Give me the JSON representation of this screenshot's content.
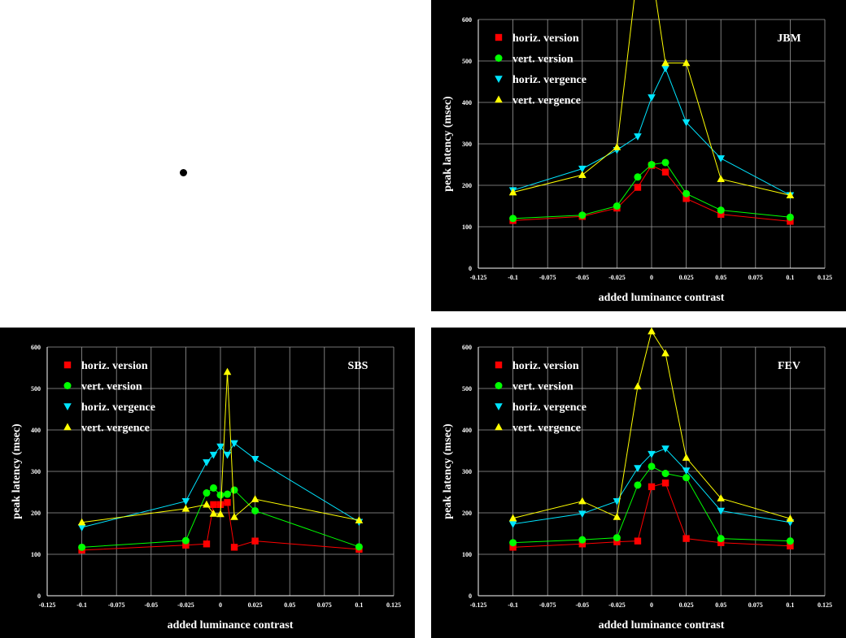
{
  "fixation_dot": {
    "color": "#000000"
  },
  "styles": {
    "horiz_version": {
      "color": "#ff0000",
      "marker": "square"
    },
    "vert_version": {
      "color": "#00ff00",
      "marker": "circle"
    },
    "horiz_vergence": {
      "color": "#00e5ff",
      "marker": "triangle-down"
    },
    "vert_vergence": {
      "color": "#ffff00",
      "marker": "triangle-up"
    }
  },
  "chart_data": [
    {
      "id": "jbm",
      "type": "line",
      "subject": "JBM",
      "xlabel": "added luminance contrast",
      "ylabel": "peak latency (msec)",
      "xlim": [
        -0.125,
        0.125
      ],
      "ylim": [
        0,
        600
      ],
      "xticks": [
        -0.125,
        -0.1,
        -0.075,
        -0.05,
        -0.025,
        0,
        0.025,
        0.05,
        0.075,
        0.1,
        0.125
      ],
      "xtick_labels": [
        "-0.125",
        "-0.1",
        "-0.075",
        "-0.05",
        "-0.025",
        "0",
        "0.025",
        "0.05",
        "0.075",
        "0.1",
        "0.125"
      ],
      "yticks": [
        0,
        100,
        200,
        300,
        400,
        500,
        600
      ],
      "ytick_labels": [
        "0",
        "100",
        "200",
        "300",
        "400",
        "500",
        "600"
      ],
      "grid": true,
      "legend_position": "top-left",
      "series": [
        {
          "name": "horiz. version",
          "style": "horiz_version",
          "x": [
            -0.1,
            -0.05,
            -0.025,
            -0.01,
            0,
            0.01,
            0.025,
            0.05,
            0.1
          ],
          "y": [
            115,
            125,
            145,
            195,
            248,
            232,
            168,
            130,
            113
          ]
        },
        {
          "name": "vert. version",
          "style": "vert_version",
          "x": [
            -0.1,
            -0.05,
            -0.025,
            -0.01,
            0,
            0.01,
            0.025,
            0.05,
            0.1
          ],
          "y": [
            120,
            128,
            150,
            220,
            250,
            255,
            180,
            140,
            123
          ]
        },
        {
          "name": "horiz. vergence",
          "style": "horiz_vergence",
          "x": [
            -0.1,
            -0.05,
            -0.025,
            -0.01,
            0,
            0.01,
            0.025,
            0.05,
            0.1
          ],
          "y": [
            188,
            240,
            285,
            318,
            412,
            482,
            352,
            265,
            176
          ]
        },
        {
          "name": "vert. vergence",
          "style": "vert_vergence",
          "x": [
            -0.1,
            -0.05,
            -0.025,
            -0.01,
            0,
            0.01,
            0.025,
            0.05,
            0.1
          ],
          "y": [
            183,
            225,
            292,
            720,
            720,
            495,
            495,
            215,
            176
          ]
        }
      ]
    },
    {
      "id": "sbs",
      "type": "line",
      "subject": "SBS",
      "xlabel": "added luminance contrast",
      "ylabel": "peak latency (msec)",
      "xlim": [
        -0.125,
        0.125
      ],
      "ylim": [
        0,
        600
      ],
      "xticks": [
        -0.125,
        -0.1,
        -0.075,
        -0.05,
        -0.025,
        0,
        0.025,
        0.05,
        0.075,
        0.1,
        0.125
      ],
      "xtick_labels": [
        "-0.125",
        "-0.1",
        "-0.075",
        "-0.05",
        "-0.025",
        "0",
        "0.025",
        "0.05",
        "0.075",
        "0.1",
        "0.125"
      ],
      "yticks": [
        0,
        100,
        200,
        300,
        400,
        500,
        600
      ],
      "ytick_labels": [
        "0",
        "100",
        "200",
        "300",
        "400",
        "500",
        "600"
      ],
      "grid": true,
      "legend_position": "top-left",
      "series": [
        {
          "name": "horiz. version",
          "style": "horiz_version",
          "x": [
            -0.1,
            -0.025,
            -0.01,
            -0.005,
            0,
            0.005,
            0.01,
            0.025,
            0.1
          ],
          "y": [
            110,
            122,
            125,
            220,
            220,
            225,
            117,
            132,
            112
          ]
        },
        {
          "name": "vert. version",
          "style": "vert_version",
          "x": [
            -0.1,
            -0.025,
            -0.01,
            -0.005,
            0,
            0.005,
            0.01,
            0.025,
            0.1
          ],
          "y": [
            117,
            133,
            248,
            260,
            243,
            245,
            255,
            205,
            118
          ]
        },
        {
          "name": "horiz. vergence",
          "style": "horiz_vergence",
          "x": [
            -0.1,
            -0.025,
            -0.01,
            -0.005,
            0,
            0.005,
            0.01,
            0.025,
            0.1
          ],
          "y": [
            165,
            228,
            322,
            340,
            360,
            340,
            368,
            330,
            178
          ]
        },
        {
          "name": "vert. vergence",
          "style": "vert_vergence",
          "x": [
            -0.1,
            -0.025,
            -0.01,
            -0.005,
            0,
            0.005,
            0.01,
            0.025,
            0.1
          ],
          "y": [
            177,
            210,
            220,
            198,
            197,
            540,
            190,
            233,
            182
          ]
        }
      ]
    },
    {
      "id": "fev",
      "type": "line",
      "subject": "FEV",
      "xlabel": "added luminance contrast",
      "ylabel": "peak latency (msec)",
      "xlim": [
        -0.125,
        0.125
      ],
      "ylim": [
        0,
        600
      ],
      "xticks": [
        -0.125,
        -0.1,
        -0.075,
        -0.05,
        -0.025,
        0,
        0.025,
        0.05,
        0.075,
        0.1,
        0.125
      ],
      "xtick_labels": [
        "-0.125",
        "-0.1",
        "-0.075",
        "-0.05",
        "-0.025",
        "0",
        "0.025",
        "0.05",
        "0.075",
        "0.1",
        "0.125"
      ],
      "yticks": [
        0,
        100,
        200,
        300,
        400,
        500,
        600
      ],
      "ytick_labels": [
        "0",
        "100",
        "200",
        "300",
        "400",
        "500",
        "600"
      ],
      "grid": true,
      "legend_position": "top-left",
      "series": [
        {
          "name": "horiz. version",
          "style": "horiz_version",
          "x": [
            -0.1,
            -0.05,
            -0.025,
            -0.01,
            0,
            0.01,
            0.025,
            0.05,
            0.1
          ],
          "y": [
            117,
            125,
            130,
            132,
            263,
            272,
            138,
            128,
            120
          ]
        },
        {
          "name": "vert. version",
          "style": "vert_version",
          "x": [
            -0.1,
            -0.05,
            -0.025,
            -0.01,
            0,
            0.01,
            0.025,
            0.05,
            0.1
          ],
          "y": [
            128,
            135,
            140,
            267,
            312,
            295,
            285,
            138,
            132
          ]
        },
        {
          "name": "horiz. vergence",
          "style": "horiz_vergence",
          "x": [
            -0.1,
            -0.05,
            -0.025,
            -0.01,
            0,
            0.01,
            0.025,
            0.05,
            0.1
          ],
          "y": [
            173,
            198,
            228,
            308,
            342,
            355,
            302,
            205,
            177
          ]
        },
        {
          "name": "vert. vergence",
          "style": "vert_vergence",
          "x": [
            -0.1,
            -0.05,
            -0.025,
            -0.01,
            0,
            0.01,
            0.025,
            0.05,
            0.1
          ],
          "y": [
            187,
            228,
            190,
            505,
            638,
            585,
            333,
            235,
            186
          ]
        }
      ]
    }
  ]
}
